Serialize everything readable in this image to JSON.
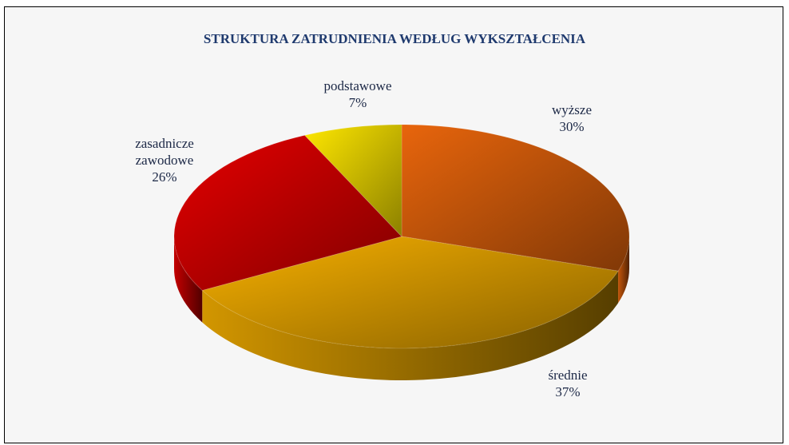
{
  "chart_data": {
    "type": "pie",
    "title": "STRUKTURA ZATRUDNIENIA WEDŁUG WYKSZTAŁCENIA",
    "categories": [
      "wyższe",
      "średnie",
      "zasadnicze zawodowe",
      "podstawowe"
    ],
    "values": [
      30,
      37,
      26,
      7
    ],
    "value_labels": [
      "30%",
      "37%",
      "26%",
      "7%"
    ],
    "colors": [
      "#e8650c",
      "#f7b000",
      "#e60000",
      "#ffe800"
    ]
  }
}
